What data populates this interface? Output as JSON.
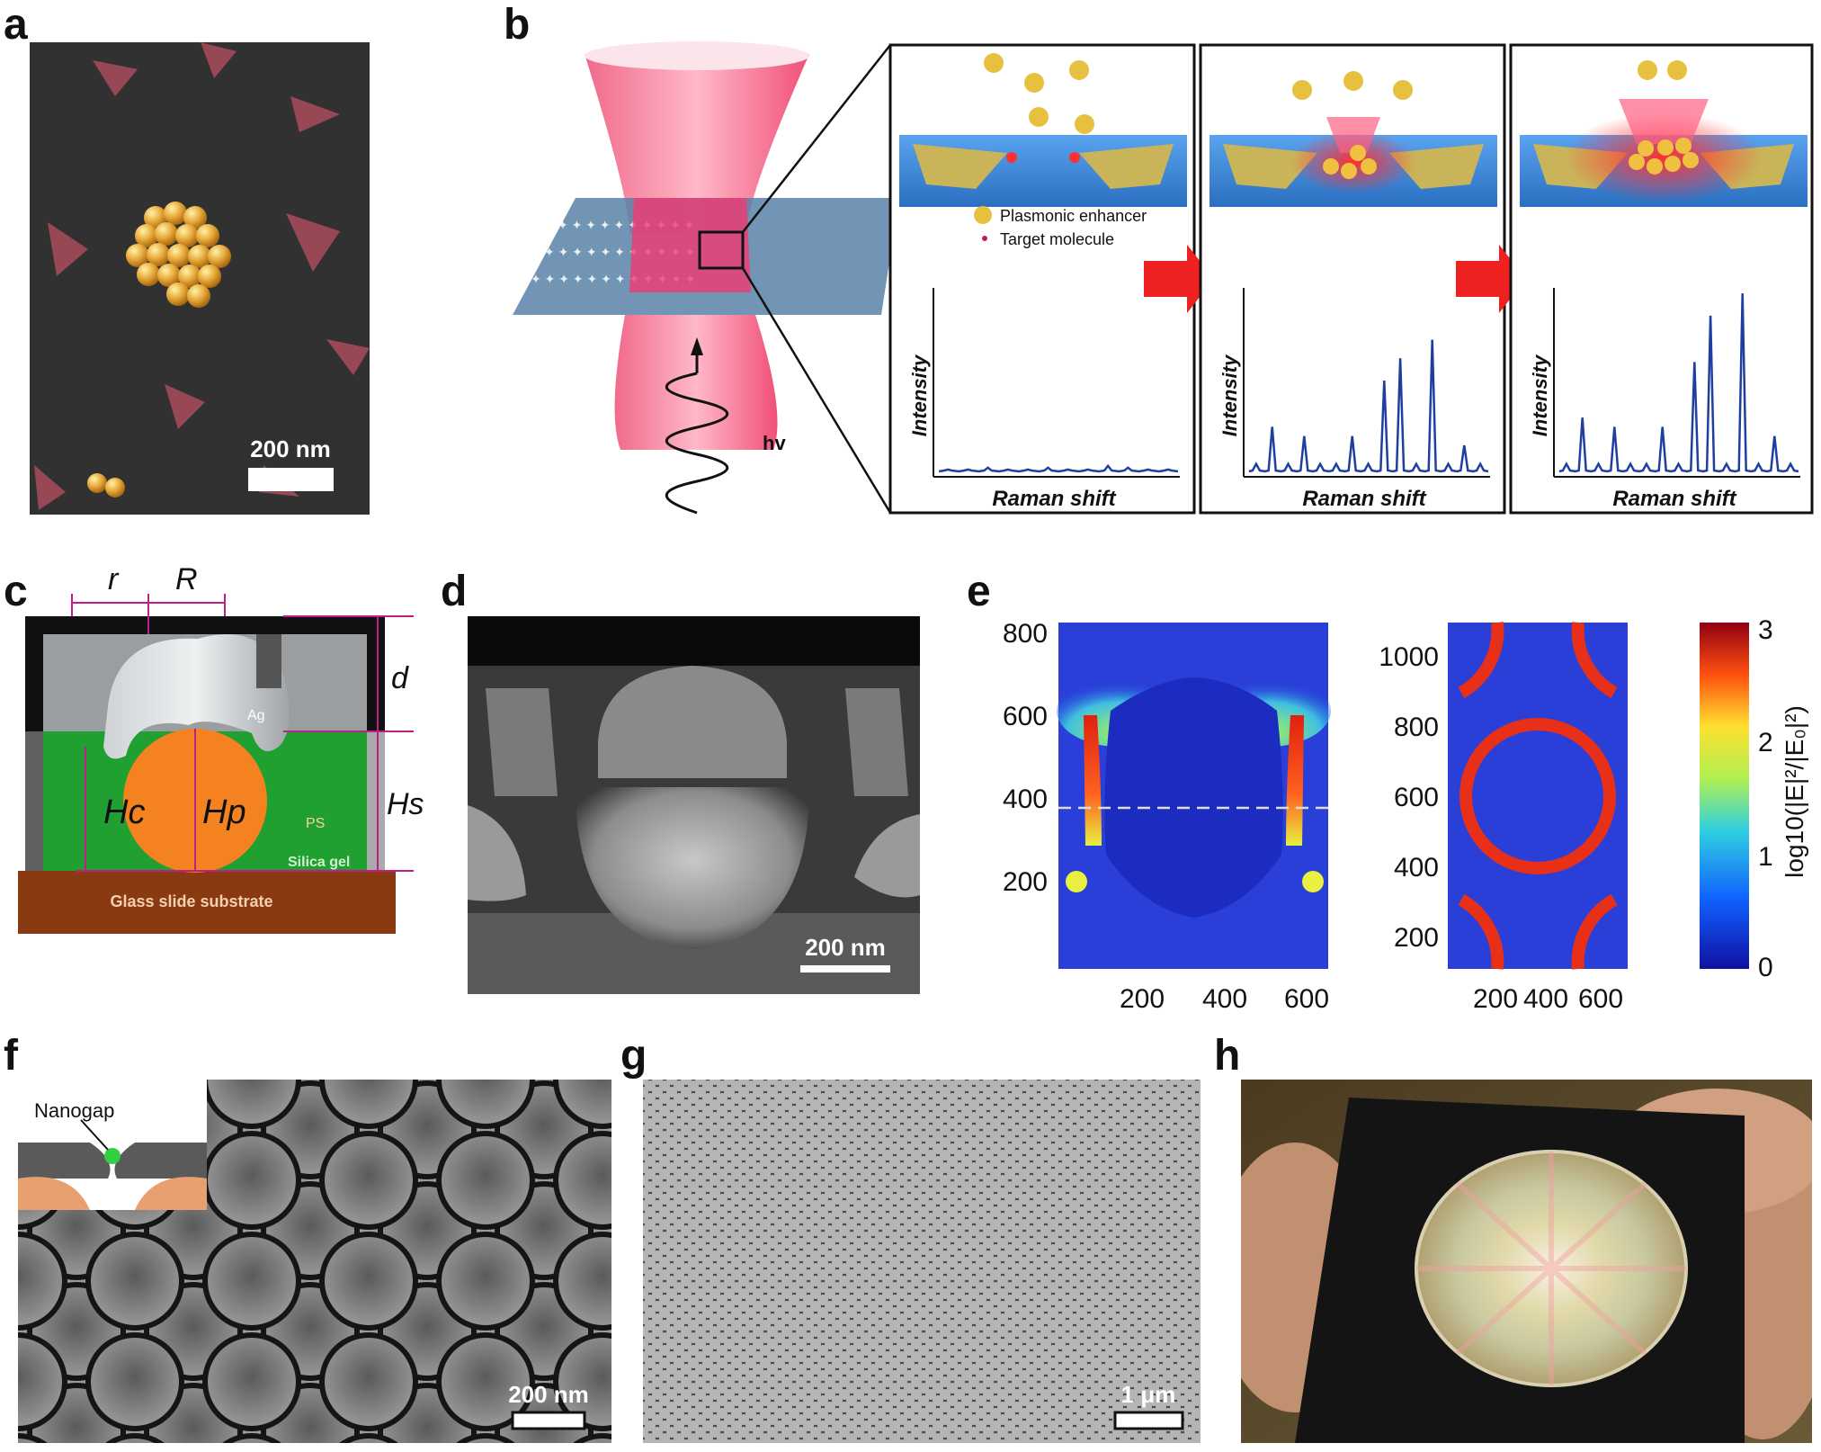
{
  "panels": {
    "a": {
      "letter": "a",
      "scalebar": "200 nm"
    },
    "b": {
      "letter": "b",
      "photon": "hv",
      "legend": {
        "enhancer": "Plasmonic enhancer",
        "molecule": "Target molecule"
      },
      "plot": {
        "ylabel": "Intensity",
        "xlabel": "Raman shift"
      }
    },
    "c": {
      "letter": "c",
      "labels": {
        "r": "r",
        "R": "R",
        "d": "d",
        "Hs": "Hs",
        "Hc": "Hc",
        "Hp": "Hp",
        "Ag": "Ag",
        "PS": "PS",
        "silica": "Silica gel",
        "substrate": "Glass slide substrate"
      }
    },
    "d": {
      "letter": "d",
      "scalebar": "200 nm"
    },
    "e": {
      "letter": "e",
      "left_yticks": [
        "800",
        "600",
        "400",
        "200"
      ],
      "left_xticks": [
        "200",
        "400",
        "600"
      ],
      "right_yticks": [
        "1000",
        "800",
        "600",
        "400",
        "200"
      ],
      "right_xticks": [
        "200",
        "400",
        "600"
      ],
      "cbar_ticks": [
        "3",
        "2",
        "1",
        "0"
      ],
      "cbar_label": "log10(|E|²/|E₀|²)"
    },
    "f": {
      "letter": "f",
      "inset_label": "Nanogap",
      "scalebar": "200 nm"
    },
    "g": {
      "letter": "g",
      "scalebar": "1 μm"
    },
    "h": {
      "letter": "h"
    }
  },
  "colors": {
    "pink": "#f2527a",
    "blue_substrate": "#3c8de0",
    "gold": "#e8b040",
    "spectrum": "#1f3fa0",
    "arrow_red": "#ee2020",
    "green_gel": "#1fa030",
    "orange_ps": "#f58220",
    "brown_glass": "#8a3a12"
  },
  "chart_data": [
    {
      "type": "line",
      "series": [
        {
          "values": [
            0.02,
            0.02,
            0.03,
            0.02,
            0.02,
            0.03,
            0.02,
            0.02,
            0.04,
            0.03,
            0.02,
            0.02
          ]
        }
      ],
      "xlabel": "Raman shift",
      "ylabel": "Intensity"
    },
    {
      "type": "line",
      "series": [
        {
          "values": [
            0.05,
            0.25,
            0.05,
            0.2,
            0.05,
            0.05,
            0.2,
            0.05,
            0.5,
            0.62,
            0.05,
            0.72,
            0.05,
            0.15,
            0.05
          ]
        }
      ],
      "xlabel": "Raman shift",
      "ylabel": "Intensity"
    },
    {
      "type": "line",
      "series": [
        {
          "values": [
            0.05,
            0.3,
            0.05,
            0.25,
            0.05,
            0.05,
            0.25,
            0.05,
            0.6,
            0.85,
            0.05,
            0.97,
            0.05,
            0.2,
            0.05
          ]
        }
      ],
      "xlabel": "Raman shift",
      "ylabel": "Intensity"
    }
  ]
}
